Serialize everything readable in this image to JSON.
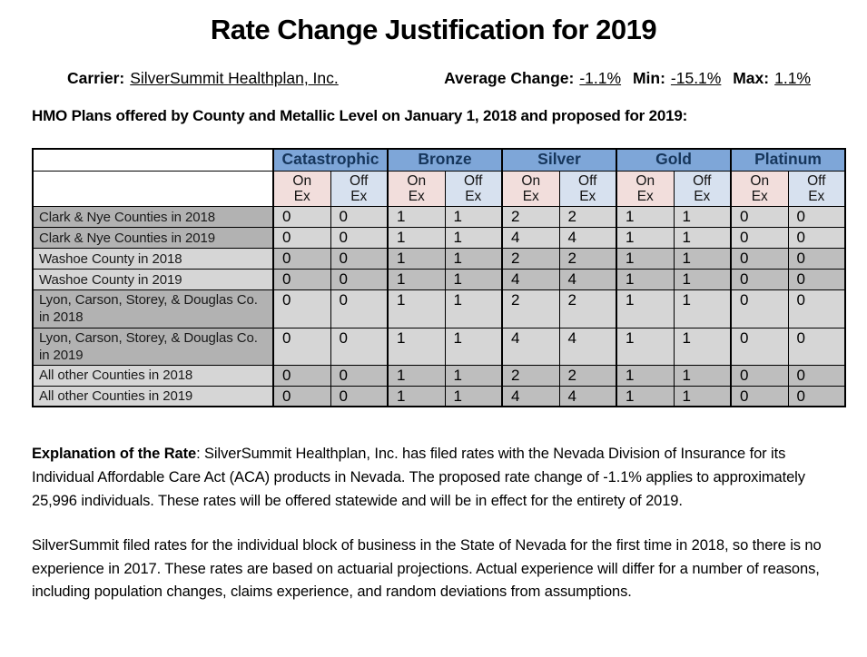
{
  "page": {
    "title": "Rate Change Justification for 2019"
  },
  "meta": {
    "carrier_label": "Carrier:",
    "carrier_value": "SilverSummit Healthplan, Inc.",
    "average_change_label": "Average Change:",
    "average_change_value": "-1.1%",
    "min_label": "Min:",
    "min_value": "-15.1%",
    "max_label": "Max:",
    "max_value": "1.1%"
  },
  "table_caption": "HMO Plans offered by County and Metallic Level on January 1, 2018 and proposed for 2019:",
  "table": {
    "metal_headers": [
      "Catastrophic",
      "Bronze",
      "Silver",
      "Gold",
      "Platinum"
    ],
    "exchange_headers": [
      "On\nEx",
      "Off\nEx"
    ],
    "rows": [
      {
        "label": "Clark & Nye Counties in 2018",
        "values": [
          0,
          0,
          1,
          1,
          2,
          2,
          1,
          1,
          0,
          0
        ]
      },
      {
        "label": "Clark & Nye Counties in 2019",
        "values": [
          0,
          0,
          1,
          1,
          4,
          4,
          1,
          1,
          0,
          0
        ]
      },
      {
        "label": "Washoe County in 2018",
        "values": [
          0,
          0,
          1,
          1,
          2,
          2,
          1,
          1,
          0,
          0
        ]
      },
      {
        "label": "Washoe County in 2019",
        "values": [
          0,
          0,
          1,
          1,
          4,
          4,
          1,
          1,
          0,
          0
        ]
      },
      {
        "label": "Lyon, Carson, Storey, & Douglas Co. in 2018",
        "values": [
          0,
          0,
          1,
          1,
          2,
          2,
          1,
          1,
          0,
          0
        ]
      },
      {
        "label": "Lyon, Carson, Storey, & Douglas Co. in 2019",
        "values": [
          0,
          0,
          1,
          1,
          4,
          4,
          1,
          1,
          0,
          0
        ]
      },
      {
        "label": "All other Counties in 2018",
        "values": [
          0,
          0,
          1,
          1,
          2,
          2,
          1,
          1,
          0,
          0
        ]
      },
      {
        "label": "All other Counties in 2019",
        "values": [
          0,
          0,
          1,
          1,
          4,
          4,
          1,
          1,
          0,
          0
        ]
      }
    ]
  },
  "explanation": {
    "heading": "Explanation of the Rate",
    "body": ": SilverSummit Healthplan, Inc. has filed rates with the Nevada Division of Insurance for its Individual Affordable Care Act (ACA) products in Nevada. The proposed rate change of -1.1% applies to approximately 25,996 individuals. These rates will be offered statewide and will be in effect for the entirety of 2019.",
    "paragraph2": "SilverSummit filed rates for the individual block of business in the State of Nevada for the first time in 2018, so there is no experience in 2017. These rates are based on actuarial projections. Actual experience will differ for a number of reasons, including population changes, claims experience, and random deviations from assumptions."
  },
  "colors": {
    "header_blue": "#7EA6D8",
    "header_navy": "#16365C",
    "on_ex_pink": "#F2DEDC",
    "off_ex_blue": "#D7E1EF",
    "gray_medium": "#B2B2B2",
    "gray_light": "#D6D6D6",
    "gray_mid2": "#BEBEBE",
    "border_black": "#000000"
  }
}
